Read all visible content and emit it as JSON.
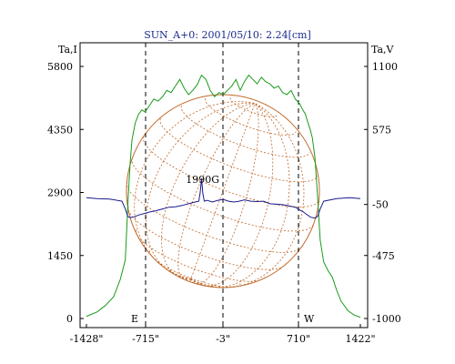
{
  "chart_data": {
    "type": "line",
    "title": "SUN_A+0: 2001/05/10: 2.24[cm]",
    "left_axis_label": "Ta,I",
    "right_axis_label": "Ta,V",
    "xlim": [
      -1428,
      1422
    ],
    "ylim_left": [
      0,
      5800
    ],
    "ylim_right": [
      -1000,
      1100
    ],
    "x_ticks": [
      {
        "value": -1428,
        "label": "-1428\""
      },
      {
        "value": -715,
        "label": "-715\""
      },
      {
        "value": -3,
        "label": "-3\""
      },
      {
        "value": 710,
        "label": "710\""
      },
      {
        "value": 1422,
        "label": "1422\""
      }
    ],
    "y_left_ticks": [
      {
        "value": 0,
        "label": "0"
      },
      {
        "value": 1450,
        "label": "1450"
      },
      {
        "value": 2900,
        "label": "2900"
      },
      {
        "value": 4350,
        "label": "4350"
      },
      {
        "value": 5800,
        "label": "5800"
      }
    ],
    "y_right_ticks": [
      {
        "value": -1000,
        "label": "-1000"
      },
      {
        "value": -475,
        "label": "-475"
      },
      {
        "value": -50,
        "label": "-50"
      },
      {
        "value": 575,
        "label": "575"
      },
      {
        "value": 1100,
        "label": "1100"
      }
    ],
    "limb_lines": [
      {
        "x": -715,
        "label": "E"
      },
      {
        "x": -3,
        "label": ""
      },
      {
        "x": 710,
        "label": "W"
      }
    ],
    "annotations": [
      {
        "text": "1990G",
        "x": -190,
        "y": 3080
      }
    ],
    "series": [
      {
        "color": "#1a9a1a",
        "axis": "left",
        "x": [
          -1428,
          -1300,
          -1200,
          -1100,
          -1020,
          -960,
          -925,
          -900,
          -880,
          -860,
          -840,
          -800,
          -760,
          -720,
          -680,
          -640,
          -600,
          -560,
          -520,
          -480,
          -440,
          -400,
          -360,
          -320,
          -280,
          -240,
          -200,
          -160,
          -120,
          -80,
          -40,
          0,
          40,
          80,
          120,
          160,
          200,
          240,
          280,
          320,
          360,
          400,
          440,
          480,
          520,
          560,
          600,
          640,
          680,
          720,
          760,
          790,
          820,
          845,
          870,
          900,
          930,
          960,
          1000,
          1050,
          1100,
          1150,
          1200,
          1280,
          1350,
          1422
        ],
        "values": [
          50,
          150,
          300,
          500,
          900,
          1350,
          2800,
          3600,
          4100,
          4300,
          4500,
          4700,
          4800,
          4750,
          4900,
          5050,
          5000,
          5100,
          5250,
          5200,
          5350,
          5500,
          5300,
          5150,
          5250,
          5380,
          5600,
          5500,
          5250,
          5100,
          5200,
          5150,
          5250,
          5350,
          5500,
          5250,
          5450,
          5600,
          5500,
          5400,
          5550,
          5450,
          5400,
          5300,
          5350,
          5200,
          5150,
          5250,
          5050,
          4950,
          4800,
          4700,
          4500,
          4350,
          4150,
          3700,
          2800,
          1800,
          1300,
          1100,
          950,
          650,
          400,
          180,
          80,
          30
        ]
      },
      {
        "color": "#1a1a8c",
        "axis": "left",
        "x": [
          -1428,
          -1300,
          -1150,
          -1000,
          -960,
          -930,
          -900,
          -850,
          -800,
          -720,
          -680,
          -620,
          -560,
          -500,
          -440,
          -380,
          -320,
          -260,
          -225,
          -212,
          -200,
          -188,
          -175,
          -150,
          -100,
          -50,
          0,
          50,
          100,
          150,
          200,
          260,
          320,
          380,
          440,
          500,
          560,
          620,
          680,
          720,
          760,
          800,
          850,
          900,
          930,
          960,
          1000,
          1150,
          1300,
          1422
        ],
        "values": [
          2780,
          2760,
          2750,
          2700,
          2520,
          2350,
          2320,
          2340,
          2380,
          2420,
          2450,
          2480,
          2520,
          2560,
          2570,
          2600,
          2640,
          2680,
          2700,
          2900,
          3220,
          2880,
          2700,
          2720,
          2680,
          2720,
          2740,
          2700,
          2680,
          2700,
          2730,
          2700,
          2690,
          2700,
          2640,
          2630,
          2620,
          2590,
          2560,
          2500,
          2460,
          2400,
          2330,
          2310,
          2350,
          2520,
          2700,
          2760,
          2780,
          2760
        ]
      }
    ],
    "disk_color": "#c0692b",
    "grid": false
  }
}
